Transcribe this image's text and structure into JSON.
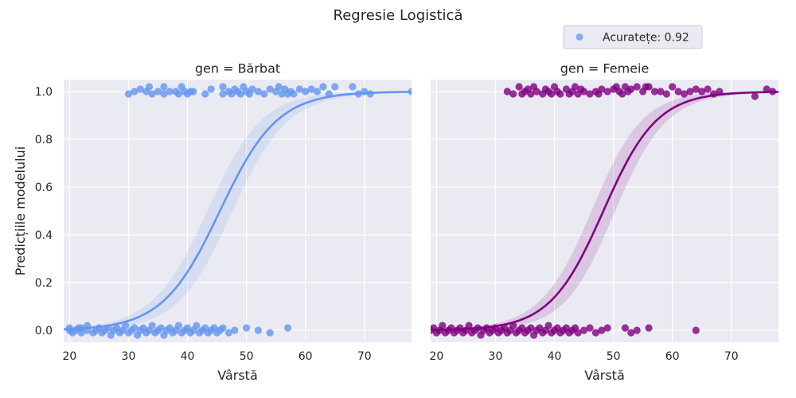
{
  "figure": {
    "title": "Regresie Logistică",
    "legend": {
      "label": "Acuratețe: 0.92",
      "placement": "top-right",
      "marker_color": "#6495ED"
    }
  },
  "chart_data": [
    {
      "type": "scatter",
      "panel_title": "gen = Bărbat",
      "xlabel": "Vârstă",
      "ylabel": "Predicțiile modelului",
      "xlim": [
        19,
        78
      ],
      "ylim": [
        -0.05,
        1.05
      ],
      "xticks": [
        "20",
        "30",
        "40",
        "50",
        "60",
        "70"
      ],
      "yticks": [
        "0.0",
        "0.2",
        "0.4",
        "0.6",
        "0.8",
        "1.0"
      ],
      "grid": true,
      "color": "#6495ED",
      "fit": {
        "type": "logistic",
        "midpoint": 45.5,
        "slope": 0.205,
        "ci_band": true
      },
      "points_y1": [
        [
          30,
          0.99
        ],
        [
          31,
          1.0
        ],
        [
          32,
          1.01
        ],
        [
          33,
          1.0
        ],
        [
          33.5,
          1.02
        ],
        [
          34,
          0.99
        ],
        [
          35,
          1.0
        ],
        [
          36,
          1.02
        ],
        [
          36,
          0.99
        ],
        [
          37,
          1.0
        ],
        [
          38,
          1.0
        ],
        [
          38.5,
          0.99
        ],
        [
          39,
          1.02
        ],
        [
          39.5,
          1.0
        ],
        [
          40,
          0.99
        ],
        [
          40.5,
          1.0
        ],
        [
          41,
          1.0
        ],
        [
          43,
          0.99
        ],
        [
          44,
          1.01
        ],
        [
          46,
          1.02
        ],
        [
          46,
          0.99
        ],
        [
          47,
          1.0
        ],
        [
          47.5,
          0.99
        ],
        [
          48,
          1.01
        ],
        [
          48.5,
          1.0
        ],
        [
          49,
          0.99
        ],
        [
          49.5,
          1.02
        ],
        [
          50,
          1.0
        ],
        [
          50.5,
          0.99
        ],
        [
          51,
          1.01
        ],
        [
          52,
          1.0
        ],
        [
          53,
          0.99
        ],
        [
          54,
          1.01
        ],
        [
          55,
          1.0
        ],
        [
          55.5,
          1.02
        ],
        [
          56,
          0.99
        ],
        [
          56.5,
          1.01
        ],
        [
          57,
          0.99
        ],
        [
          57.5,
          1.0
        ],
        [
          58,
          0.99
        ],
        [
          59,
          1.01
        ],
        [
          60,
          1.0
        ],
        [
          61,
          1.01
        ],
        [
          62,
          1.0
        ],
        [
          63,
          1.02
        ],
        [
          64,
          0.99
        ],
        [
          65,
          1.02
        ],
        [
          68,
          1.02
        ],
        [
          69,
          0.99
        ],
        [
          70,
          1.0
        ],
        [
          71,
          0.99
        ],
        [
          78,
          1.0
        ]
      ],
      "points_y0": [
        [
          20,
          0.0
        ],
        [
          20,
          0.01
        ],
        [
          20.5,
          -0.01
        ],
        [
          21,
          0.0
        ],
        [
          21.5,
          0.01
        ],
        [
          22,
          -0.01
        ],
        [
          22,
          0.01
        ],
        [
          23,
          0.0
        ],
        [
          23,
          0.02
        ],
        [
          24,
          -0.01
        ],
        [
          24.5,
          0.0
        ],
        [
          25,
          0.01
        ],
        [
          25.5,
          -0.01
        ],
        [
          26,
          0.0
        ],
        [
          26.5,
          0.01
        ],
        [
          27,
          -0.02
        ],
        [
          27.5,
          0.0
        ],
        [
          28,
          0.01
        ],
        [
          28.5,
          -0.01
        ],
        [
          29,
          0.0
        ],
        [
          29.5,
          0.02
        ],
        [
          30,
          -0.01
        ],
        [
          30.5,
          0.0
        ],
        [
          31,
          0.01
        ],
        [
          31.5,
          -0.02
        ],
        [
          32,
          0.0
        ],
        [
          32.5,
          0.01
        ],
        [
          33,
          -0.01
        ],
        [
          33.5,
          0.0
        ],
        [
          34,
          0.02
        ],
        [
          34.5,
          -0.01
        ],
        [
          35,
          0.0
        ],
        [
          35.5,
          0.01
        ],
        [
          36,
          -0.02
        ],
        [
          36.5,
          0.0
        ],
        [
          37,
          0.01
        ],
        [
          37.5,
          -0.01
        ],
        [
          38,
          0.0
        ],
        [
          38.5,
          0.02
        ],
        [
          39,
          -0.01
        ],
        [
          39.5,
          0.0
        ],
        [
          40,
          0.01
        ],
        [
          40.5,
          -0.01
        ],
        [
          41,
          0.0
        ],
        [
          41.5,
          0.02
        ],
        [
          42,
          -0.01
        ],
        [
          42.5,
          0.0
        ],
        [
          43,
          0.01
        ],
        [
          43.5,
          -0.01
        ],
        [
          44,
          0.0
        ],
        [
          44.5,
          0.01
        ],
        [
          45,
          -0.01
        ],
        [
          45.5,
          0.0
        ],
        [
          46,
          0.01
        ],
        [
          47,
          -0.01
        ],
        [
          48,
          0.0
        ],
        [
          50,
          0.01
        ],
        [
          52,
          0.0
        ],
        [
          54,
          -0.01
        ],
        [
          57,
          0.01
        ]
      ]
    },
    {
      "type": "scatter",
      "panel_title": "gen = Femeie",
      "xlabel": "Vârstă",
      "ylabel": "",
      "xlim": [
        19,
        78
      ],
      "ylim": [
        -0.05,
        1.05
      ],
      "xticks": [
        "20",
        "30",
        "40",
        "50",
        "60",
        "70"
      ],
      "yticks": [
        "0.0",
        "0.2",
        "0.4",
        "0.6",
        "0.8",
        "1.0"
      ],
      "grid": true,
      "color": "#800080",
      "fit": {
        "type": "logistic",
        "midpoint": 48.3,
        "slope": 0.22,
        "ci_band": true
      },
      "points_y1": [
        [
          32,
          1.0
        ],
        [
          33,
          0.99
        ],
        [
          34,
          1.02
        ],
        [
          34.5,
          0.99
        ],
        [
          35,
          1.0
        ],
        [
          35.5,
          1.01
        ],
        [
          36,
          0.99
        ],
        [
          36.5,
          1.02
        ],
        [
          37,
          1.0
        ],
        [
          38,
          0.99
        ],
        [
          38.5,
          1.01
        ],
        [
          39,
          1.0
        ],
        [
          39.5,
          0.99
        ],
        [
          40,
          1.02
        ],
        [
          40.5,
          1.0
        ],
        [
          41,
          0.99
        ],
        [
          42,
          1.01
        ],
        [
          42.5,
          0.99
        ],
        [
          43,
          1.0
        ],
        [
          43.5,
          1.02
        ],
        [
          44,
          0.99
        ],
        [
          44.5,
          1.01
        ],
        [
          45,
          1.0
        ],
        [
          46,
          0.99
        ],
        [
          47,
          1.0
        ],
        [
          47.5,
          0.99
        ],
        [
          48,
          1.01
        ],
        [
          49,
          1.0
        ],
        [
          50,
          1.01
        ],
        [
          50.5,
          1.02
        ],
        [
          51,
          1.0
        ],
        [
          51.5,
          0.99
        ],
        [
          52,
          1.02
        ],
        [
          52.5,
          1.0
        ],
        [
          53,
          1.01
        ],
        [
          54,
          1.02
        ],
        [
          55,
          1.0
        ],
        [
          55.5,
          1.02
        ],
        [
          56,
          1.02
        ],
        [
          57,
          1.0
        ],
        [
          58,
          1.0
        ],
        [
          59,
          0.99
        ],
        [
          60,
          1.02
        ],
        [
          61,
          1.0
        ],
        [
          62,
          0.99
        ],
        [
          63,
          1.0
        ],
        [
          64,
          1.01
        ],
        [
          65,
          1.0
        ],
        [
          66,
          1.01
        ],
        [
          67,
          0.99
        ],
        [
          68,
          1.0
        ],
        [
          74,
          0.98
        ],
        [
          76,
          1.01
        ],
        [
          77,
          1.0
        ]
      ],
      "points_y0": [
        [
          19,
          0.0
        ],
        [
          19.5,
          0.01
        ],
        [
          20,
          -0.01
        ],
        [
          20.5,
          0.0
        ],
        [
          21,
          0.02
        ],
        [
          21.5,
          -0.01
        ],
        [
          22,
          0.0
        ],
        [
          22.5,
          0.01
        ],
        [
          23,
          -0.01
        ],
        [
          23.5,
          0.0
        ],
        [
          24,
          0.01
        ],
        [
          24.5,
          -0.01
        ],
        [
          25,
          0.0
        ],
        [
          25.5,
          0.02
        ],
        [
          26,
          -0.01
        ],
        [
          26.5,
          0.0
        ],
        [
          27,
          0.01
        ],
        [
          27.5,
          -0.02
        ],
        [
          28,
          0.0
        ],
        [
          28.5,
          0.01
        ],
        [
          29,
          -0.01
        ],
        [
          29.5,
          0.0
        ],
        [
          30,
          0.01
        ],
        [
          30.5,
          -0.01
        ],
        [
          31,
          0.0
        ],
        [
          31.5,
          0.01
        ],
        [
          32,
          -0.01
        ],
        [
          32.5,
          0.0
        ],
        [
          33,
          0.02
        ],
        [
          33.5,
          -0.01
        ],
        [
          34,
          0.0
        ],
        [
          34.5,
          0.01
        ],
        [
          35,
          -0.01
        ],
        [
          35.5,
          0.0
        ],
        [
          36,
          0.01
        ],
        [
          36.5,
          -0.02
        ],
        [
          37,
          0.0
        ],
        [
          37.5,
          0.01
        ],
        [
          38,
          -0.01
        ],
        [
          38.5,
          0.0
        ],
        [
          39,
          0.02
        ],
        [
          39.5,
          -0.01
        ],
        [
          40,
          0.0
        ],
        [
          40.5,
          0.01
        ],
        [
          41,
          -0.01
        ],
        [
          41.5,
          0.0
        ],
        [
          42,
          0.01
        ],
        [
          42.5,
          -0.01
        ],
        [
          43,
          0.0
        ],
        [
          43.5,
          0.01
        ],
        [
          44,
          -0.01
        ],
        [
          45,
          0.0
        ],
        [
          46,
          0.01
        ],
        [
          47,
          -0.01
        ],
        [
          48,
          0.0
        ],
        [
          49,
          0.01
        ],
        [
          52,
          0.01
        ],
        [
          53,
          -0.01
        ],
        [
          54,
          0.0
        ],
        [
          56,
          0.01
        ],
        [
          64,
          0.0
        ]
      ]
    }
  ]
}
